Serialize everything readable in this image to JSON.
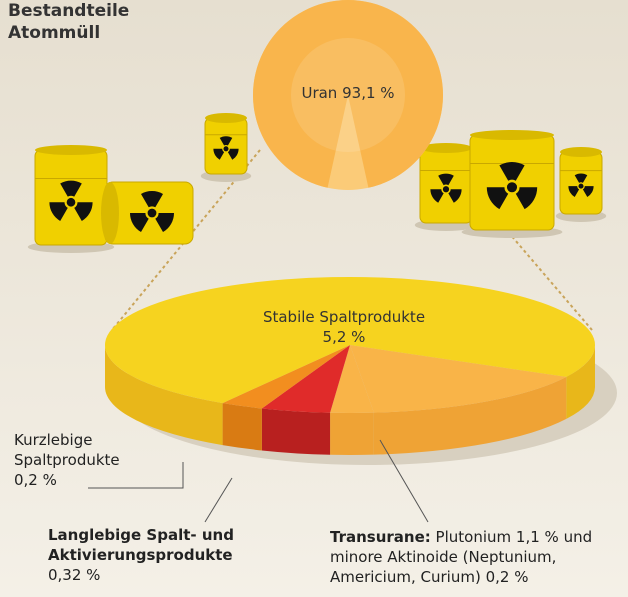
{
  "chart_data": {
    "type": "pie",
    "title": "Bestandteile Atommüll",
    "categories": [
      "Uran",
      "Stabile Spaltprodukte",
      "Kurzlebige Spaltprodukte",
      "Langlebige Spalt- und Aktivierungsprodukte",
      "Plutonium",
      "minore Aktinoide (Neptunium, Americium, Curium)"
    ],
    "values": [
      93.1,
      5.2,
      0.2,
      0.32,
      1.1,
      0.2
    ],
    "value_labels": [
      "93,1 %",
      "5,2 %",
      "0,2 %",
      "0,32 %",
      "1,1 %",
      "0,2 %"
    ],
    "colors": [
      "#f9b54c",
      "#f6d31f",
      "#f28e1f",
      "#e02b2a",
      "#f9b448",
      "#f9b448"
    ],
    "side_colors": [
      "#e9a43c",
      "#e8b71a",
      "#d97b13",
      "#b8201f",
      "#efa335",
      "#efa335"
    ],
    "group_label": "Transurane:",
    "joiner": "und"
  }
}
